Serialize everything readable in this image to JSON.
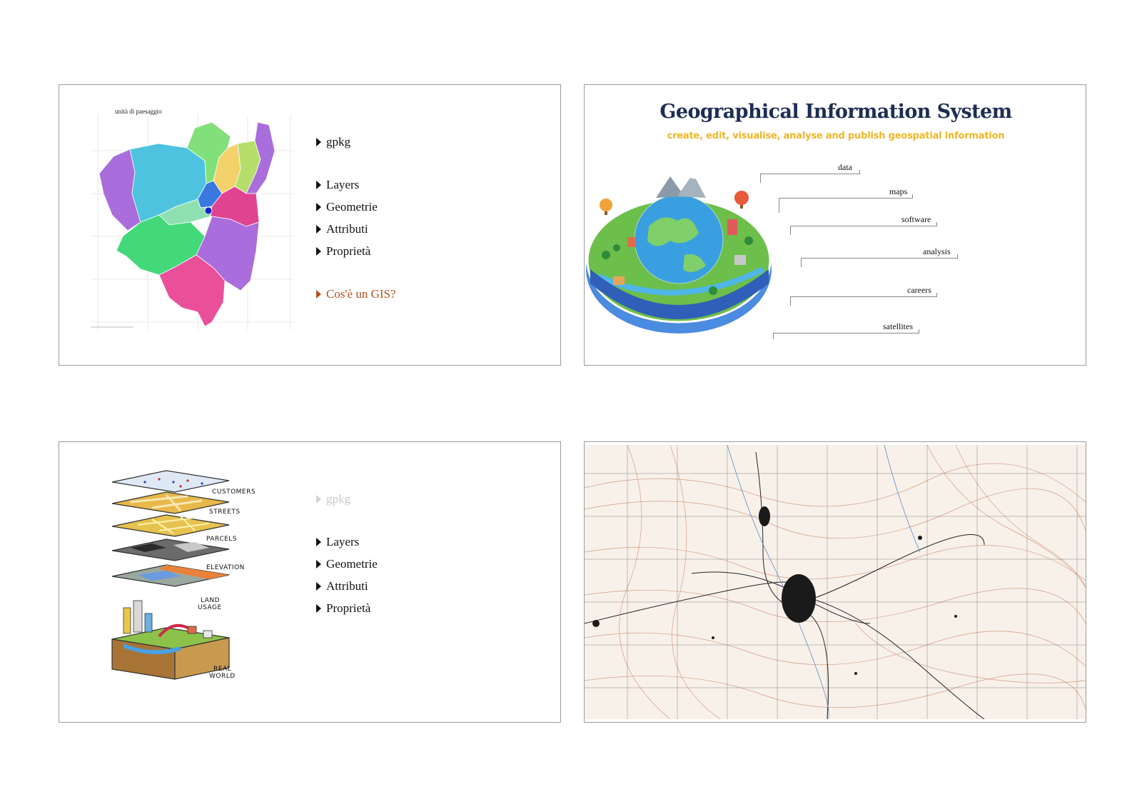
{
  "slides": [
    {
      "map_caption": "unità di paesaggio",
      "bullets": [
        "gpkg",
        "Layers",
        "Geometrie",
        "Attributi",
        "Proprietà",
        "Cos'è un GIS?"
      ]
    },
    {
      "title": "Geographical Information System",
      "subtitle": "create, edit, visualise, analyse and publish geospatial information",
      "callouts": [
        "data",
        "maps",
        "software",
        "analysis",
        "careers",
        "satellites"
      ]
    },
    {
      "layers": [
        "CUSTOMERS",
        "STREETS",
        "PARCELS",
        "ELEVATION",
        "LAND",
        "USAGE",
        "REAL",
        "WORLD"
      ],
      "bullets": [
        "gpkg",
        "Layers",
        "Geometrie",
        "Attributi",
        "Proprietà"
      ]
    },
    {
      "image": "topographic-map"
    }
  ],
  "colors": {
    "title_navy": "#1d2d54",
    "subtitle_yellow": "#f0b625",
    "accent_orange": "#b5501a",
    "faded_gray": "#c8c8c8"
  }
}
